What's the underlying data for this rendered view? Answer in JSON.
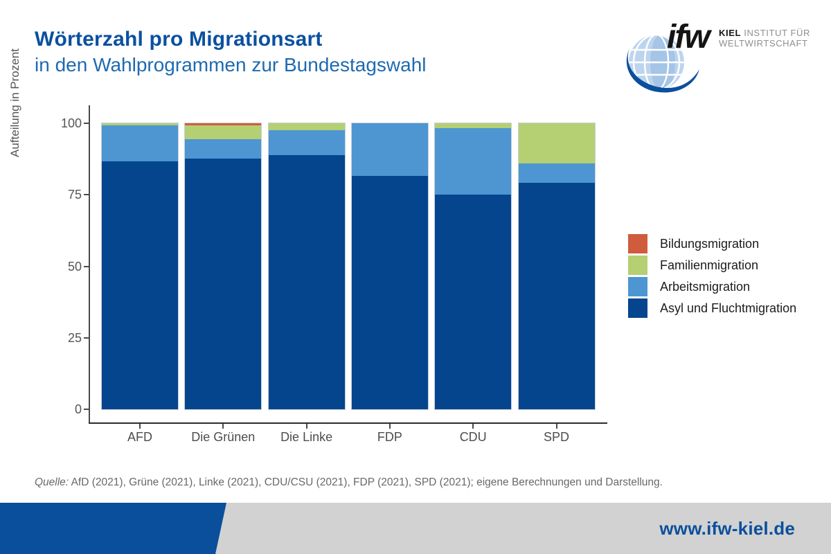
{
  "header": {
    "title": "Wörterzahl pro Migrationsart",
    "subtitle": "in den Wahlprogrammen zur Bundestagswahl"
  },
  "logo": {
    "short_name": "ifw",
    "line1_bold": "KIEL",
    "line1_rest": " INSTITUT FÜR",
    "line2": "WELTWIRTSCHAFT"
  },
  "chart_data": {
    "type": "bar",
    "stacked": true,
    "title": "Wörterzahl pro Migrationsart in den Wahlprogrammen zur Bundestagswahl",
    "xlabel": "",
    "ylabel": "Aufteilung in Prozent",
    "ylim": [
      0,
      100
    ],
    "yticks": [
      0,
      25,
      50,
      75,
      100
    ],
    "grid": false,
    "legend_position": "right",
    "categories": [
      "AFD",
      "Die Grünen",
      "Die Linke",
      "FDP",
      "CDU",
      "SPD"
    ],
    "series": [
      {
        "name": "Asyl und Fluchtmigration",
        "color": "#05458e",
        "values": [
          86.6,
          87.6,
          88.8,
          81.7,
          75.1,
          79.3
        ]
      },
      {
        "name": "Arbeitsmigration",
        "color": "#4d96d2",
        "values": [
          12.7,
          6.8,
          8.9,
          18.3,
          23.1,
          6.6
        ]
      },
      {
        "name": "Familienmigration",
        "color": "#b5cf73",
        "values": [
          0.7,
          4.9,
          2.3,
          0,
          1.8,
          14.1
        ]
      },
      {
        "name": "Bildungsmigration",
        "color": "#d05c3e",
        "values": [
          0,
          0.7,
          0,
          0,
          0,
          0
        ]
      }
    ]
  },
  "source": {
    "label": "Quelle:",
    "text": " AfD (2021), Grüne (2021), Linke (2021), CDU/CSU (2021), FDP (2021), SPD (2021); eigene Berechnungen und Darstellung."
  },
  "footer": {
    "website": "www.ifw-kiel.de"
  },
  "colors": {
    "title_blue": "#0b509f",
    "subtitle_blue": "#1e6ab0",
    "footer_blue": "#094f9b",
    "footer_gray": "#d2d2d2",
    "axis_gray": "#4a4a4a"
  }
}
